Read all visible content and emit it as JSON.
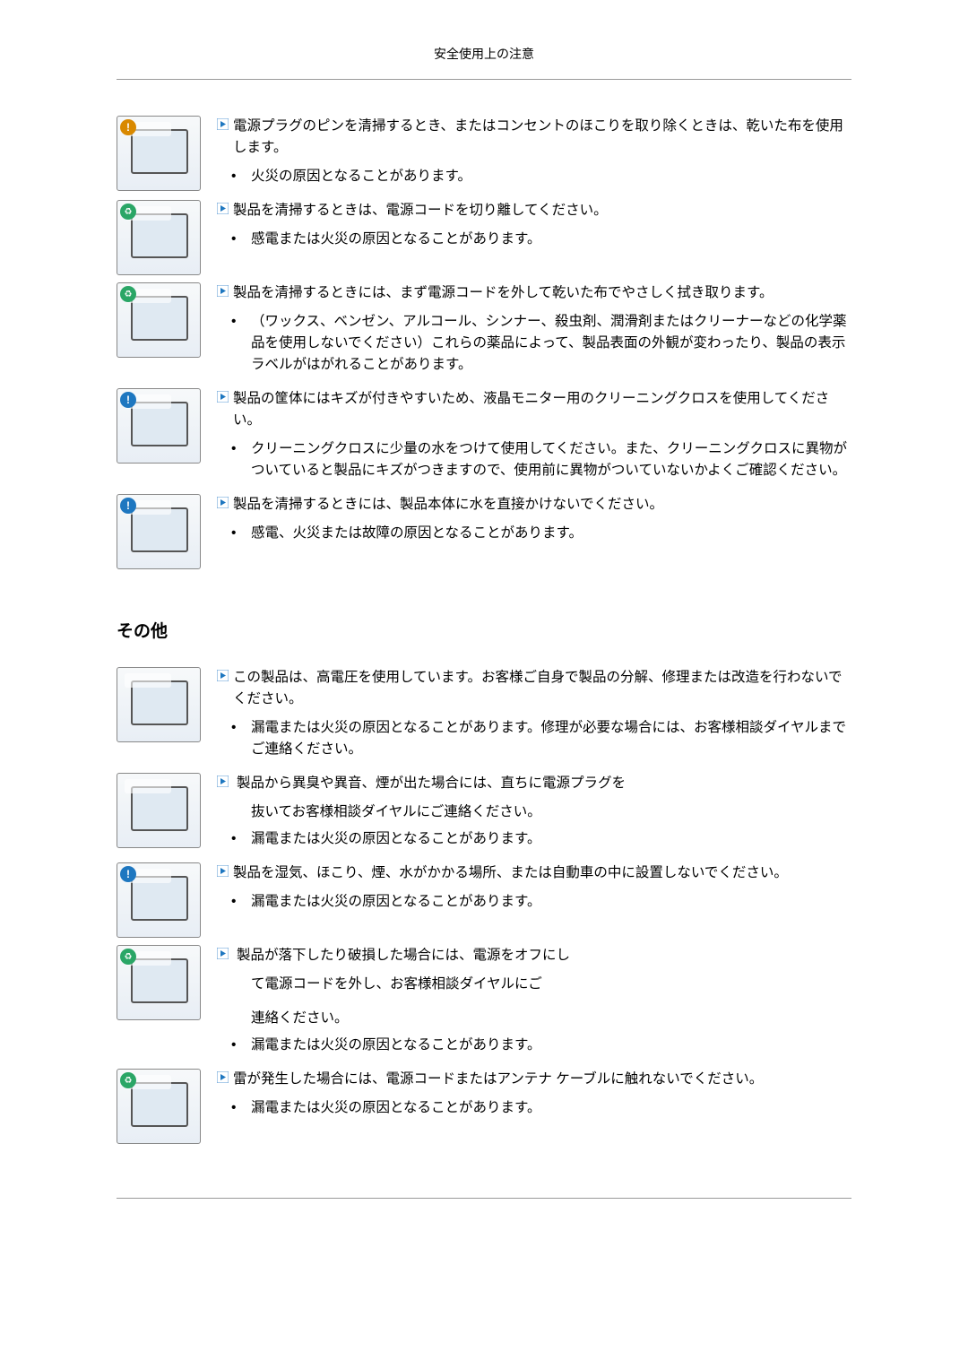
{
  "header": {
    "title": "安全使用上の注意"
  },
  "arrow_colors": {
    "border": "#1e77c0",
    "fill": "#1e77c0"
  },
  "cleaning": [
    {
      "main": "電源プラグのピンを清掃するとき、またはコンセントのほこりを取り除くときは、乾いた布を使用します。",
      "bullets": [
        "火災の原因となることがあります。"
      ],
      "badge": "warn"
    },
    {
      "main": "製品を清掃するときは、電源コードを切り離してください。",
      "bullets": [
        "感電または火災の原因となることがあります。"
      ],
      "badge": "recycle"
    },
    {
      "main": "製品を清掃するときには、まず電源コードを外して乾いた布でやさしく拭き取ります。",
      "bullets": [
        "（ワックス、ベンゼン、アルコール、シンナー、殺虫剤、潤滑剤またはクリーナーなどの化学薬品を使用しないでください）これらの薬品によって、製品表面の外観が変わったり、製品の表示ラベルがはがれることがあります。"
      ],
      "badge": "recycle"
    },
    {
      "main": "製品の筐体にはキズが付きやすいため、液晶モニター用のクリーニングクロスを使用してください。",
      "bullets": [
        "クリーニングクロスに少量の水をつけて使用してください。また、クリーニングクロスに異物がついていると製品にキズがつきますので、使用前に異物がついていないかよくご確認ください。"
      ],
      "badge": "info"
    },
    {
      "main": "製品を清掃するときには、製品本体に水を直接かけないでください。",
      "bullets": [
        "感電、火災または故障の原因となることがあります。"
      ],
      "badge": "info"
    }
  ],
  "other_title": "その他",
  "other": [
    {
      "main": "この製品は、高電圧を使用しています。お客様ご自身で製品の分解、修理または改造を行わないでください。",
      "bullets": [
        "漏電または火災の原因となることがあります。修理が必要な場合には、お客様相談ダイヤルまでご連絡ください。"
      ],
      "badge": "none"
    },
    {
      "main": "製品から異臭や異音、煙が出た場合には、直ちに電源プラグを",
      "sub": "抜いてお客様相談ダイヤルにご連絡ください。",
      "bullets": [
        "漏電または火災の原因となることがあります。"
      ],
      "badge": "none",
      "arrow_gap": true
    },
    {
      "main": "製品を湿気、ほこり、煙、水がかかる場所、または自動車の中に設置しないでください。",
      "bullets": [
        "漏電または火災の原因となることがあります。"
      ],
      "badge": "info"
    },
    {
      "main": "製品が落下したり破損した場合には、電源をオフにし",
      "sub": "て電源コードを外し、お客様相談ダイヤルにご",
      "sub2": "連絡ください。",
      "bullets": [
        "漏電または火災の原因となることがあります。"
      ],
      "badge": "recycle",
      "arrow_gap": true
    },
    {
      "main": "雷が発生した場合には、電源コードまたはアンテナ ケーブルに触れないでください。",
      "bullets": [
        "漏電または火災の原因となることがあります。"
      ],
      "badge": "recycle"
    }
  ]
}
